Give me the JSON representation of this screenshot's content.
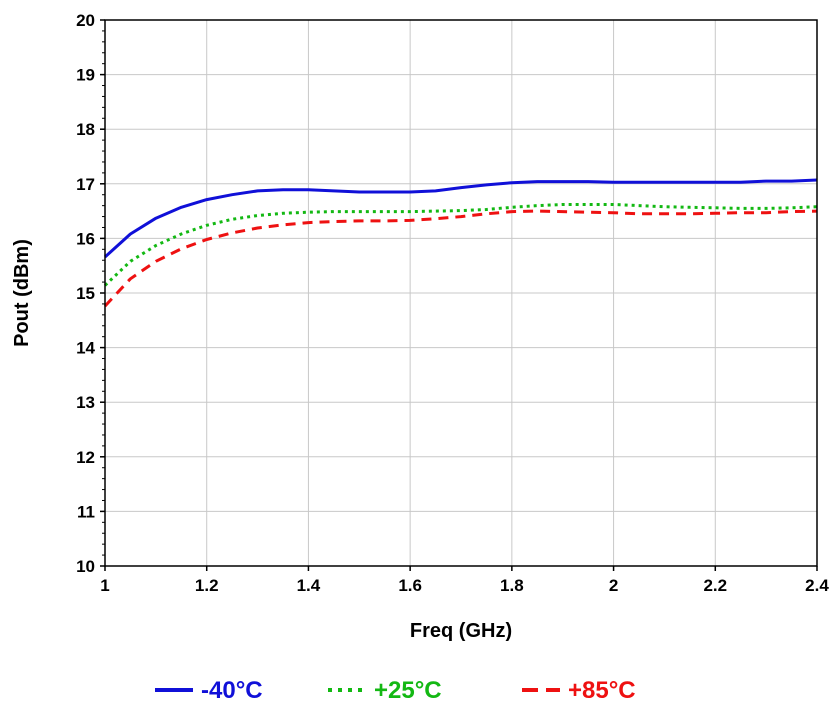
{
  "chart_data": {
    "type": "line",
    "title": "",
    "xlabel": "Freq (GHz)",
    "ylabel": "Pout (dBm)",
    "xlim": [
      1,
      2.4
    ],
    "ylim": [
      10,
      20
    ],
    "x_ticks": [
      1,
      1.2,
      1.4,
      1.6,
      1.8,
      2,
      2.2,
      2.4
    ],
    "x_tick_labels": [
      "1",
      "1.2",
      "1.4",
      "1.6",
      "1.8",
      "2",
      "2.2",
      "2.4"
    ],
    "y_ticks": [
      10,
      11,
      12,
      13,
      14,
      15,
      16,
      17,
      18,
      19,
      20
    ],
    "y_tick_labels": [
      "10",
      "11",
      "12",
      "13",
      "14",
      "15",
      "16",
      "17",
      "18",
      "19",
      "20"
    ],
    "grid": true,
    "legend_position": "bottom-center",
    "series": [
      {
        "name": "-40°C",
        "color": "#1010d8",
        "style": "solid",
        "x": [
          1.0,
          1.05,
          1.1,
          1.15,
          1.2,
          1.25,
          1.3,
          1.35,
          1.4,
          1.45,
          1.5,
          1.55,
          1.6,
          1.65,
          1.7,
          1.75,
          1.8,
          1.85,
          1.9,
          1.95,
          2.0,
          2.05,
          2.1,
          2.15,
          2.2,
          2.25,
          2.3,
          2.35,
          2.4
        ],
        "y": [
          15.66,
          16.08,
          16.37,
          16.57,
          16.71,
          16.8,
          16.87,
          16.89,
          16.89,
          16.87,
          16.85,
          16.85,
          16.85,
          16.87,
          16.93,
          16.98,
          17.02,
          17.04,
          17.04,
          17.04,
          17.03,
          17.03,
          17.03,
          17.03,
          17.03,
          17.03,
          17.05,
          17.05,
          17.07
        ]
      },
      {
        "name": "+25°C",
        "color": "#13b813",
        "style": "dotted",
        "x": [
          1.0,
          1.05,
          1.1,
          1.15,
          1.2,
          1.25,
          1.3,
          1.35,
          1.4,
          1.45,
          1.5,
          1.55,
          1.6,
          1.65,
          1.7,
          1.75,
          1.8,
          1.85,
          1.9,
          1.95,
          2.0,
          2.05,
          2.1,
          2.15,
          2.2,
          2.25,
          2.3,
          2.35,
          2.4
        ],
        "y": [
          15.14,
          15.58,
          15.87,
          16.08,
          16.24,
          16.35,
          16.42,
          16.46,
          16.48,
          16.49,
          16.49,
          16.49,
          16.49,
          16.5,
          16.51,
          16.53,
          16.57,
          16.6,
          16.62,
          16.62,
          16.62,
          16.6,
          16.58,
          16.57,
          16.56,
          16.55,
          16.55,
          16.56,
          16.58
        ]
      },
      {
        "name": "+85°C",
        "color": "#ee1111",
        "style": "dashed",
        "x": [
          1.0,
          1.05,
          1.1,
          1.15,
          1.2,
          1.25,
          1.3,
          1.35,
          1.4,
          1.45,
          1.5,
          1.55,
          1.6,
          1.65,
          1.7,
          1.75,
          1.8,
          1.85,
          1.9,
          1.95,
          2.0,
          2.05,
          2.1,
          2.15,
          2.2,
          2.25,
          2.3,
          2.35,
          2.4
        ],
        "y": [
          14.76,
          15.26,
          15.58,
          15.81,
          15.98,
          16.1,
          16.19,
          16.25,
          16.29,
          16.31,
          16.32,
          16.32,
          16.33,
          16.36,
          16.4,
          16.45,
          16.49,
          16.5,
          16.49,
          16.48,
          16.47,
          16.45,
          16.45,
          16.45,
          16.46,
          16.47,
          16.47,
          16.49,
          16.5
        ]
      }
    ]
  }
}
